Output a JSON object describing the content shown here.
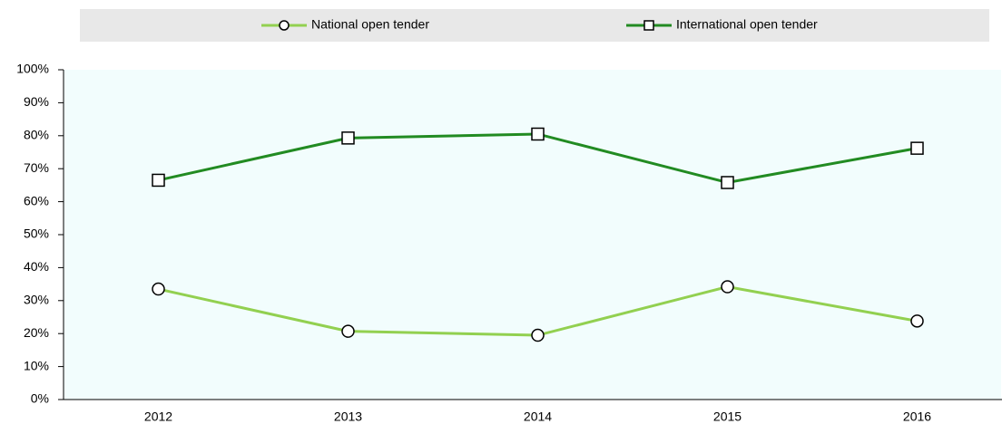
{
  "chart_data": {
    "type": "line",
    "categories": [
      "2012",
      "2013",
      "2014",
      "2015",
      "2016"
    ],
    "series": [
      {
        "name": "National open tender",
        "color": "#92d050",
        "marker": "circle",
        "values": [
          33.5,
          20.7,
          19.5,
          34.2,
          23.8
        ]
      },
      {
        "name": "International open tender",
        "color": "#228b22",
        "marker": "square",
        "values": [
          66.5,
          79.3,
          80.5,
          65.8,
          76.2
        ]
      }
    ],
    "ylim": [
      0,
      100
    ],
    "yticks": [
      {
        "value": 0,
        "label": "0%"
      },
      {
        "value": 10,
        "label": "10%"
      },
      {
        "value": 20,
        "label": "20%"
      },
      {
        "value": 30,
        "label": "30%"
      },
      {
        "value": 40,
        "label": "40%"
      },
      {
        "value": 50,
        "label": "50%"
      },
      {
        "value": 60,
        "label": "60%"
      },
      {
        "value": 70,
        "label": "70%"
      },
      {
        "value": 80,
        "label": "80%"
      },
      {
        "value": 90,
        "label": "90%"
      },
      {
        "value": 100,
        "label": "100%"
      }
    ],
    "grid": false,
    "legend": "top"
  }
}
